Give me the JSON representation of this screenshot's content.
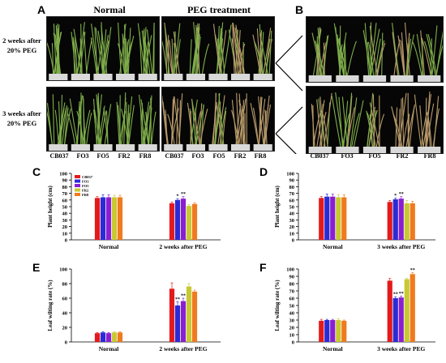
{
  "panels": {
    "A": "A",
    "B": "B",
    "C": "C",
    "D": "D",
    "E": "E",
    "F": "F"
  },
  "photo_headers": {
    "normal": "Normal",
    "peg": "PEG treatment"
  },
  "row_labels": {
    "row1_line1": "2 weeks after",
    "row1_line2": "20% PEG",
    "row2_line1": "3 weeks after",
    "row2_line2": "20% PEG"
  },
  "genotypes_A": [
    "CB037",
    "FO3",
    "FO5",
    "FR2",
    "FR8"
  ],
  "genotypes_B": [
    "CB037",
    "FO3",
    "FO5",
    "FR2",
    "FR8"
  ],
  "colors": {
    "CB037": "#e31a1c",
    "FO3": "#2b2bd6",
    "FO5": "#8a1fd0",
    "FR2": "#c8c832",
    "FR8": "#f07a1e",
    "wilted_plant": "#b89a6a",
    "healthy_plant": "#7fae4a"
  },
  "chart_data": [
    {
      "id": "C",
      "type": "bar",
      "categories": [
        "Normal",
        "2 weeks after PEG"
      ],
      "series": [
        {
          "name": "CB037",
          "values": [
            63,
            55
          ],
          "errors": [
            2,
            2
          ]
        },
        {
          "name": "FO3",
          "values": [
            64,
            60
          ],
          "errors": [
            4,
            2
          ]
        },
        {
          "name": "FO5",
          "values": [
            64,
            62
          ],
          "errors": [
            4,
            3
          ]
        },
        {
          "name": "FR2",
          "values": [
            64,
            51
          ],
          "errors": [
            3,
            2
          ]
        },
        {
          "name": "FR8",
          "values": [
            64,
            54
          ],
          "errors": [
            3,
            2
          ]
        }
      ],
      "annotations": [
        {
          "category": 1,
          "series": 1,
          "text": "*"
        },
        {
          "category": 1,
          "series": 2,
          "text": "**"
        }
      ],
      "ylabel": "Plant height (cm)",
      "xlabel": "",
      "ylim": [
        0,
        100
      ],
      "yticks": [
        0,
        10,
        20,
        30,
        40,
        50,
        60,
        70,
        80,
        90,
        100
      ],
      "legend": "top-left",
      "grid": false
    },
    {
      "id": "D",
      "type": "bar",
      "categories": [
        "Normal",
        "3 weeks after PEG"
      ],
      "series": [
        {
          "name": "CB037",
          "values": [
            63,
            57
          ],
          "errors": [
            2,
            2
          ]
        },
        {
          "name": "FO3",
          "values": [
            65,
            61
          ],
          "errors": [
            4,
            2
          ]
        },
        {
          "name": "FO5",
          "values": [
            65,
            62
          ],
          "errors": [
            4,
            3
          ]
        },
        {
          "name": "FR2",
          "values": [
            64,
            55
          ],
          "errors": [
            4,
            4
          ]
        },
        {
          "name": "FR8",
          "values": [
            64,
            55
          ],
          "errors": [
            4,
            3
          ]
        }
      ],
      "annotations": [
        {
          "category": 1,
          "series": 1,
          "text": "*"
        },
        {
          "category": 1,
          "series": 2,
          "text": "**"
        }
      ],
      "ylabel": "Plant height (cm)",
      "xlabel": "",
      "ylim": [
        0,
        100
      ],
      "yticks": [
        0,
        10,
        20,
        30,
        40,
        50,
        60,
        70,
        80,
        90,
        100
      ],
      "legend": "none",
      "grid": false
    },
    {
      "id": "E",
      "type": "bar",
      "categories": [
        "Normal",
        "2 weeks after PEG"
      ],
      "series": [
        {
          "name": "CB037",
          "values": [
            12,
            73
          ],
          "errors": [
            1,
            8
          ]
        },
        {
          "name": "FO3",
          "values": [
            13,
            50
          ],
          "errors": [
            1,
            5
          ]
        },
        {
          "name": "FO5",
          "values": [
            12,
            56
          ],
          "errors": [
            1,
            4
          ]
        },
        {
          "name": "FR2",
          "values": [
            13,
            76
          ],
          "errors": [
            1,
            4
          ]
        },
        {
          "name": "FR8",
          "values": [
            13,
            69
          ],
          "errors": [
            1,
            2
          ]
        }
      ],
      "annotations": [
        {
          "category": 1,
          "series": 1,
          "text": "**"
        },
        {
          "category": 1,
          "series": 2,
          "text": "**"
        }
      ],
      "ylabel": "Leaf wilting rate (%)",
      "xlabel": "",
      "ylim": [
        0,
        100
      ],
      "yticks": [
        0,
        20,
        40,
        60,
        80,
        100
      ],
      "legend": "none",
      "grid": false
    },
    {
      "id": "F",
      "type": "bar",
      "categories": [
        "Normal",
        "3 weeks after PEG"
      ],
      "series": [
        {
          "name": "CB037",
          "values": [
            29,
            84
          ],
          "errors": [
            2,
            3
          ]
        },
        {
          "name": "FO3",
          "values": [
            30,
            60
          ],
          "errors": [
            1,
            2
          ]
        },
        {
          "name": "FO5",
          "values": [
            30,
            61
          ],
          "errors": [
            1,
            2
          ]
        },
        {
          "name": "FR2",
          "values": [
            30,
            86
          ],
          "errors": [
            2,
            1
          ]
        },
        {
          "name": "FR8",
          "values": [
            29,
            93
          ],
          "errors": [
            1,
            2
          ]
        }
      ],
      "annotations": [
        {
          "category": 1,
          "series": 1,
          "text": "**"
        },
        {
          "category": 1,
          "series": 2,
          "text": "**"
        },
        {
          "category": 1,
          "series": 4,
          "text": "**"
        }
      ],
      "ylabel": "Leaf wilting rate (%)",
      "xlabel": "",
      "ylim": [
        0,
        100
      ],
      "yticks": [
        0,
        10,
        20,
        30,
        40,
        50,
        60,
        70,
        80,
        90,
        100
      ],
      "legend": "none",
      "grid": false
    }
  ]
}
